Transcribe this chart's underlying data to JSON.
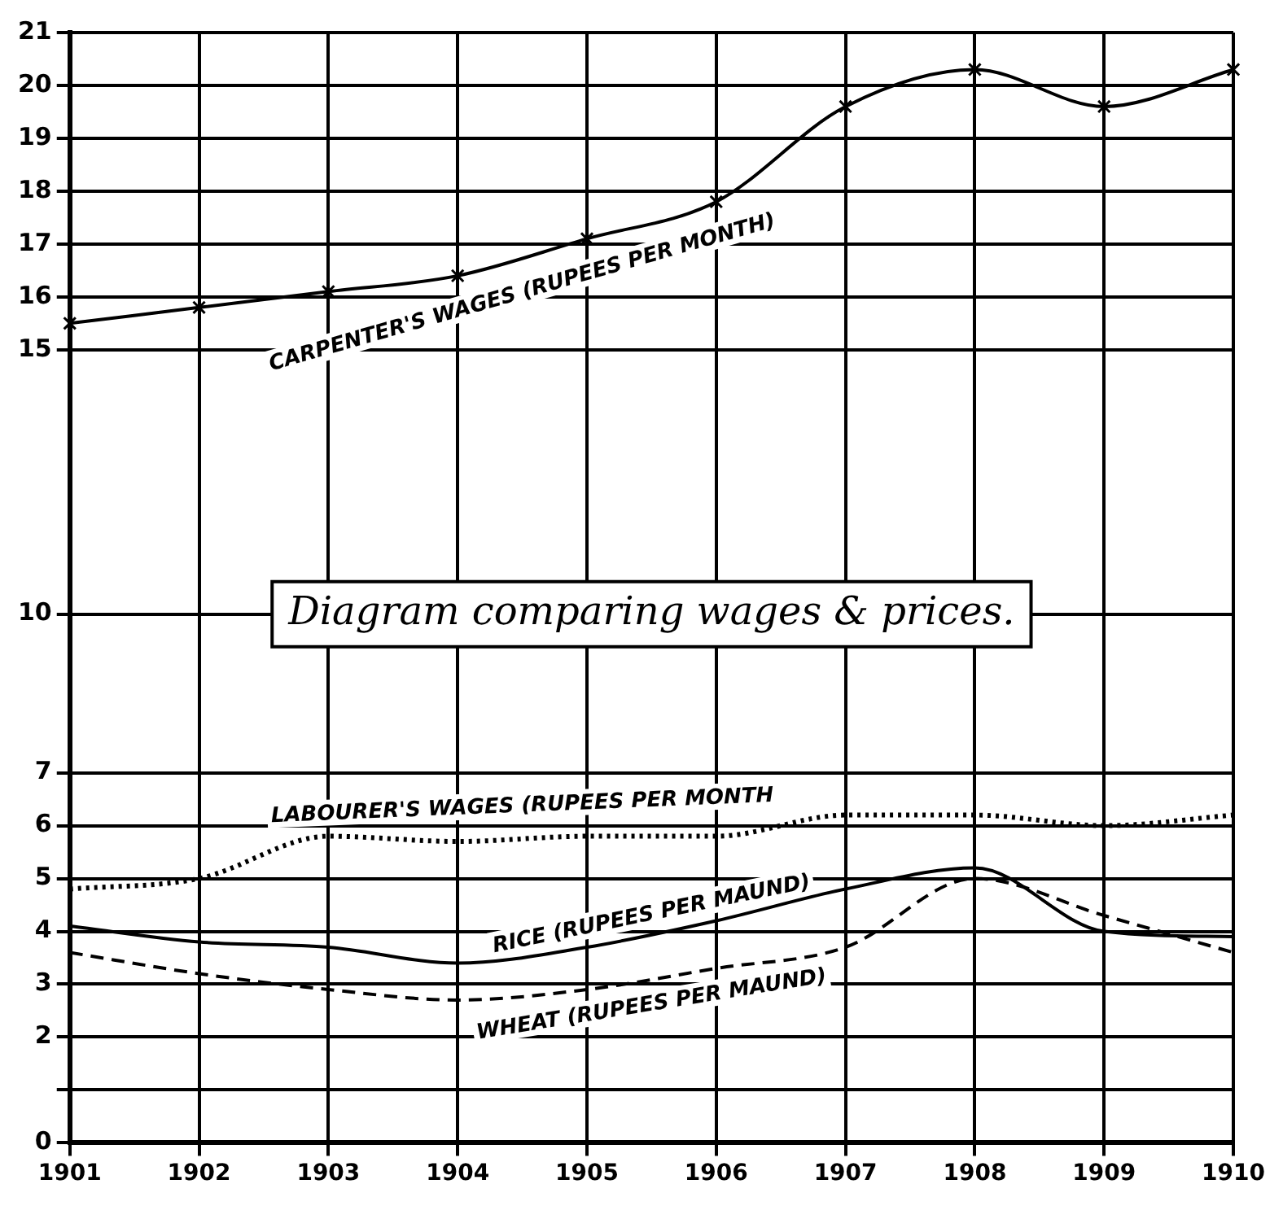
{
  "chart_data": {
    "type": "line",
    "title": "Diagram comparing wages & prices.",
    "categories": [
      "1901",
      "1902",
      "1903",
      "1904",
      "1905",
      "1906",
      "1907",
      "1908",
      "1909",
      "1910"
    ],
    "series": [
      {
        "name": "CARPENTER'S WAGES (RUPEES PER MONTH)",
        "color": "#000000",
        "marker": "cross",
        "line_style": "solid",
        "values": [
          15.5,
          15.8,
          16.1,
          16.4,
          17.1,
          17.8,
          19.6,
          20.3,
          19.6,
          20.3
        ]
      },
      {
        "name": "LABOURER'S WAGES (RUPEES PER MONTH",
        "color": "#000000",
        "marker": "none",
        "line_style": "dotted",
        "values": [
          4.8,
          5.0,
          5.8,
          5.7,
          5.8,
          5.8,
          6.2,
          6.2,
          6.0,
          6.2
        ]
      },
      {
        "name": "RICE (RUPEES PER MAUND)",
        "color": "#000000",
        "marker": "none",
        "line_style": "solid",
        "values": [
          4.1,
          3.8,
          3.7,
          3.4,
          3.7,
          4.2,
          4.8,
          5.2,
          4.0,
          3.9
        ]
      },
      {
        "name": "WHEAT (RUPEES PER MAUND)",
        "color": "#000000",
        "marker": "none",
        "line_style": "dashed",
        "values": [
          3.6,
          3.2,
          2.9,
          2.7,
          2.9,
          3.3,
          3.7,
          5.0,
          4.3,
          3.6
        ]
      }
    ],
    "ylim": [
      0,
      21
    ],
    "yticks": [
      0,
      {
        "value": 1,
        "label": null
      },
      2,
      3,
      4,
      5,
      6,
      7,
      10,
      15,
      16,
      17,
      18,
      19,
      20,
      21
    ],
    "grid": true,
    "legend": false
  }
}
